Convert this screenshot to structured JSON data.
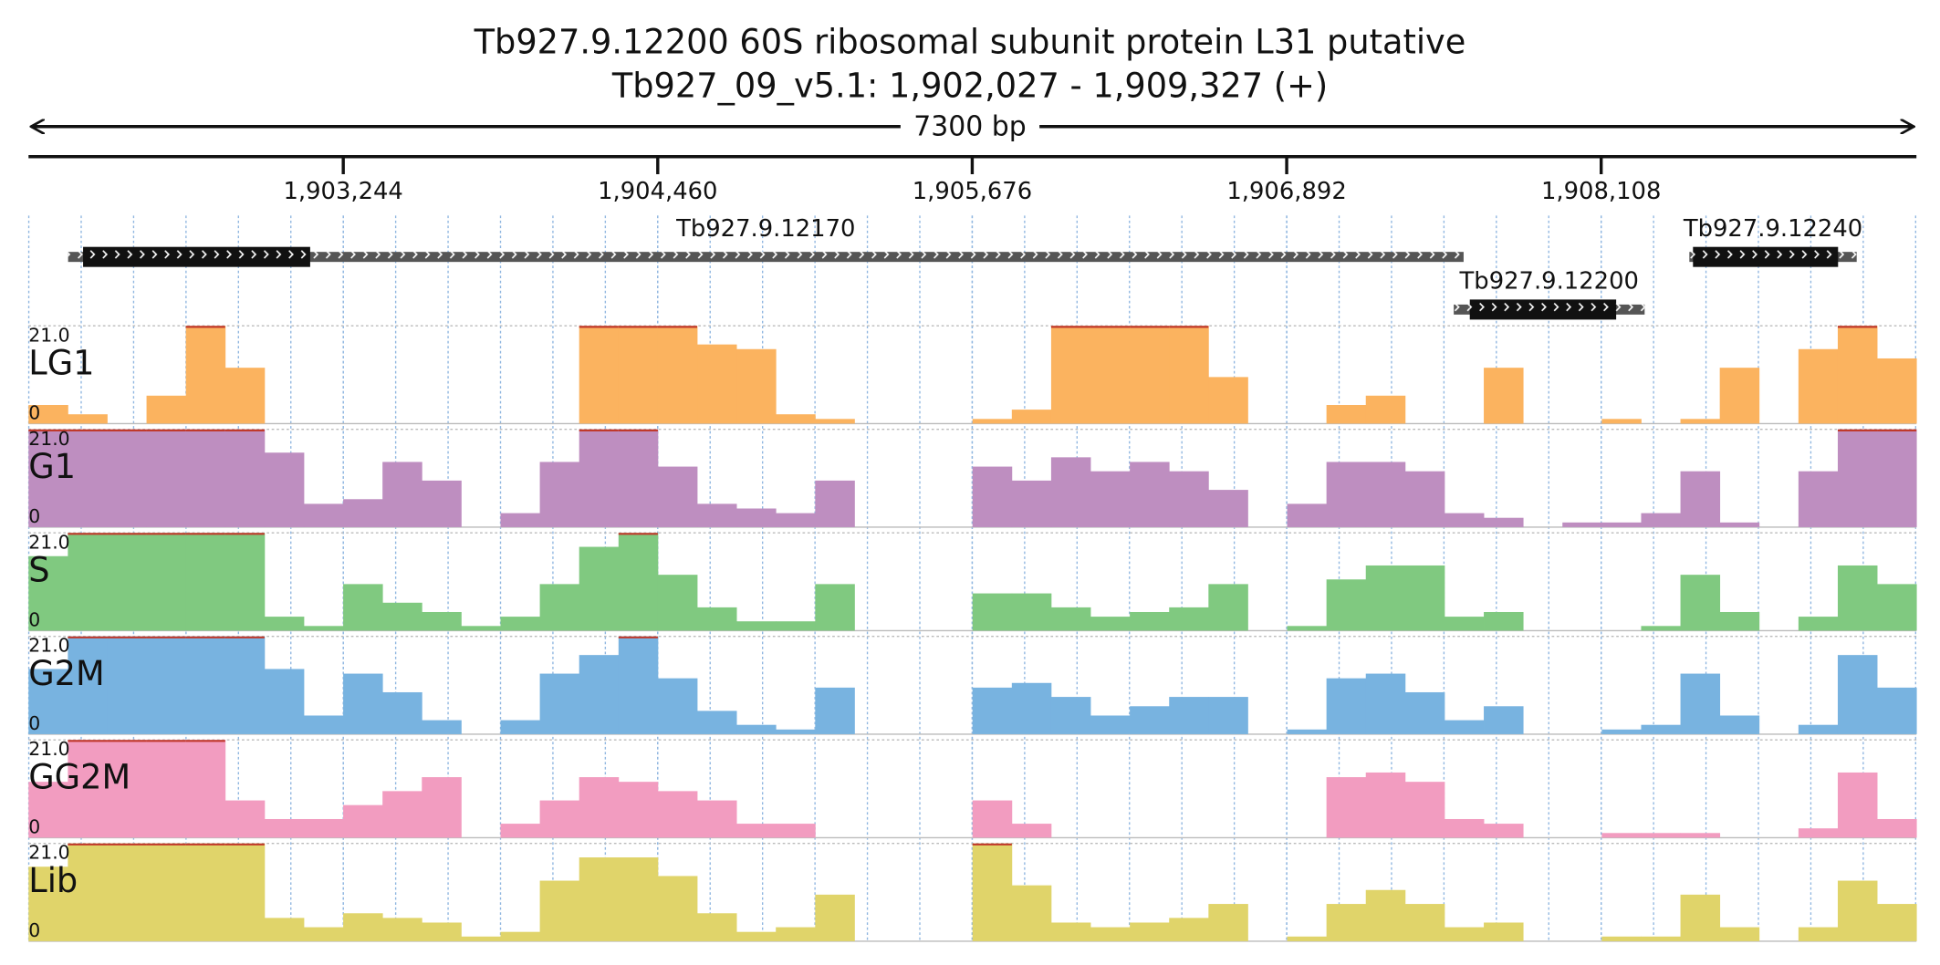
{
  "header": {
    "title": "Tb927.9.12200  60S ribosomal subunit protein L31  putative",
    "subtitle": "Tb927_09_v5.1: 1,902,027 - 1,909,327 (+)"
  },
  "region": {
    "start": 1902027,
    "end": 1909327,
    "length": {
      "value": 7300,
      "label": "7300 bp"
    }
  },
  "ruler": {
    "ticks": [
      {
        "value": 1903244,
        "label": "1,903,244"
      },
      {
        "value": 1904460,
        "label": "1,904,460"
      },
      {
        "value": 1905676,
        "label": "1,905,676"
      },
      {
        "value": 1906892,
        "label": "1,906,892"
      },
      {
        "value": 1908108,
        "label": "1,908,108"
      }
    ]
  },
  "genes": [
    {
      "name": "Tb927.9.12170",
      "start": 1902180,
      "end": 1907576,
      "cds_start": 1902238,
      "cds_end": 1903116,
      "row": 1
    },
    {
      "name": "Tb927.9.12200",
      "start": 1907538,
      "end": 1908276,
      "cds_start": 1907600,
      "cds_end": 1908166,
      "row": 2
    },
    {
      "name": "Tb927.9.12240",
      "start": 1908449,
      "end": 1909096,
      "cds_start": 1908463,
      "cds_end": 1909024,
      "row": 1
    }
  ],
  "tracks": [
    {
      "name": "LG1",
      "color": "#fbb35f",
      "max": {
        "value": 21,
        "label": "21.0"
      },
      "min": 0,
      "values": [
        4,
        2,
        0,
        6,
        21,
        12,
        0,
        0,
        0,
        0,
        0,
        0,
        0,
        0,
        21,
        21,
        21,
        17,
        16,
        2,
        1,
        0,
        0,
        0,
        1,
        3,
        21,
        21,
        21,
        21,
        10,
        0,
        0,
        4,
        6,
        0,
        0,
        12,
        0,
        0,
        1,
        0,
        1,
        12,
        0,
        16,
        21,
        14
      ]
    },
    {
      "name": "G1",
      "color": "#be8ec0",
      "max": {
        "value": 21,
        "label": "21.0"
      },
      "min": 0,
      "values": [
        21,
        21,
        21,
        21,
        21,
        21,
        16,
        5,
        6,
        14,
        10,
        0,
        3,
        14,
        21,
        21,
        13,
        5,
        4,
        3,
        10,
        0,
        0,
        0,
        13,
        10,
        15,
        12,
        14,
        12,
        8,
        0,
        5,
        14,
        14,
        12,
        3,
        2,
        0,
        1,
        1,
        3,
        12,
        1,
        0,
        12,
        21,
        21
      ]
    },
    {
      "name": "S",
      "color": "#80c980",
      "max": {
        "value": 21,
        "label": "21.0"
      },
      "min": 0,
      "values": [
        16,
        21,
        21,
        21,
        21,
        21,
        3,
        1,
        10,
        6,
        4,
        1,
        3,
        10,
        18,
        21,
        12,
        5,
        2,
        2,
        10,
        0,
        0,
        0,
        8,
        8,
        5,
        3,
        4,
        5,
        10,
        0,
        1,
        11,
        14,
        14,
        3,
        4,
        0,
        0,
        0,
        1,
        12,
        4,
        0,
        3,
        14,
        10
      ]
    },
    {
      "name": "G2M",
      "color": "#78b3e0",
      "max": {
        "value": 21,
        "label": "21.0"
      },
      "min": 0,
      "values": [
        14,
        21,
        21,
        21,
        21,
        21,
        14,
        4,
        13,
        9,
        3,
        0,
        3,
        13,
        17,
        21,
        12,
        5,
        2,
        1,
        10,
        0,
        0,
        0,
        10,
        11,
        8,
        4,
        6,
        8,
        8,
        0,
        1,
        12,
        13,
        9,
        3,
        6,
        0,
        0,
        1,
        2,
        13,
        4,
        0,
        2,
        17,
        10
      ]
    },
    {
      "name": "GG2M",
      "color": "#f29cc0",
      "max": {
        "value": 21,
        "label": "21.0"
      },
      "min": 0,
      "values": [
        12,
        21,
        21,
        21,
        21,
        8,
        4,
        4,
        7,
        10,
        13,
        0,
        3,
        8,
        13,
        12,
        10,
        8,
        3,
        3,
        0,
        0,
        0,
        0,
        8,
        3,
        0,
        0,
        0,
        0,
        0,
        0,
        0,
        13,
        14,
        12,
        4,
        3,
        0,
        0,
        1,
        1,
        1,
        0,
        0,
        2,
        14,
        4
      ]
    },
    {
      "name": "Lib",
      "color": "#e0d46a",
      "max": {
        "value": 21,
        "label": "21.0"
      },
      "min": 0,
      "values": [
        16,
        21,
        21,
        21,
        21,
        21,
        5,
        3,
        6,
        5,
        4,
        1,
        2,
        13,
        18,
        18,
        14,
        6,
        2,
        3,
        10,
        0,
        0,
        0,
        21,
        12,
        4,
        3,
        4,
        5,
        8,
        0,
        1,
        8,
        11,
        8,
        3,
        4,
        0,
        0,
        1,
        1,
        10,
        3,
        0,
        3,
        13,
        8
      ]
    }
  ]
}
